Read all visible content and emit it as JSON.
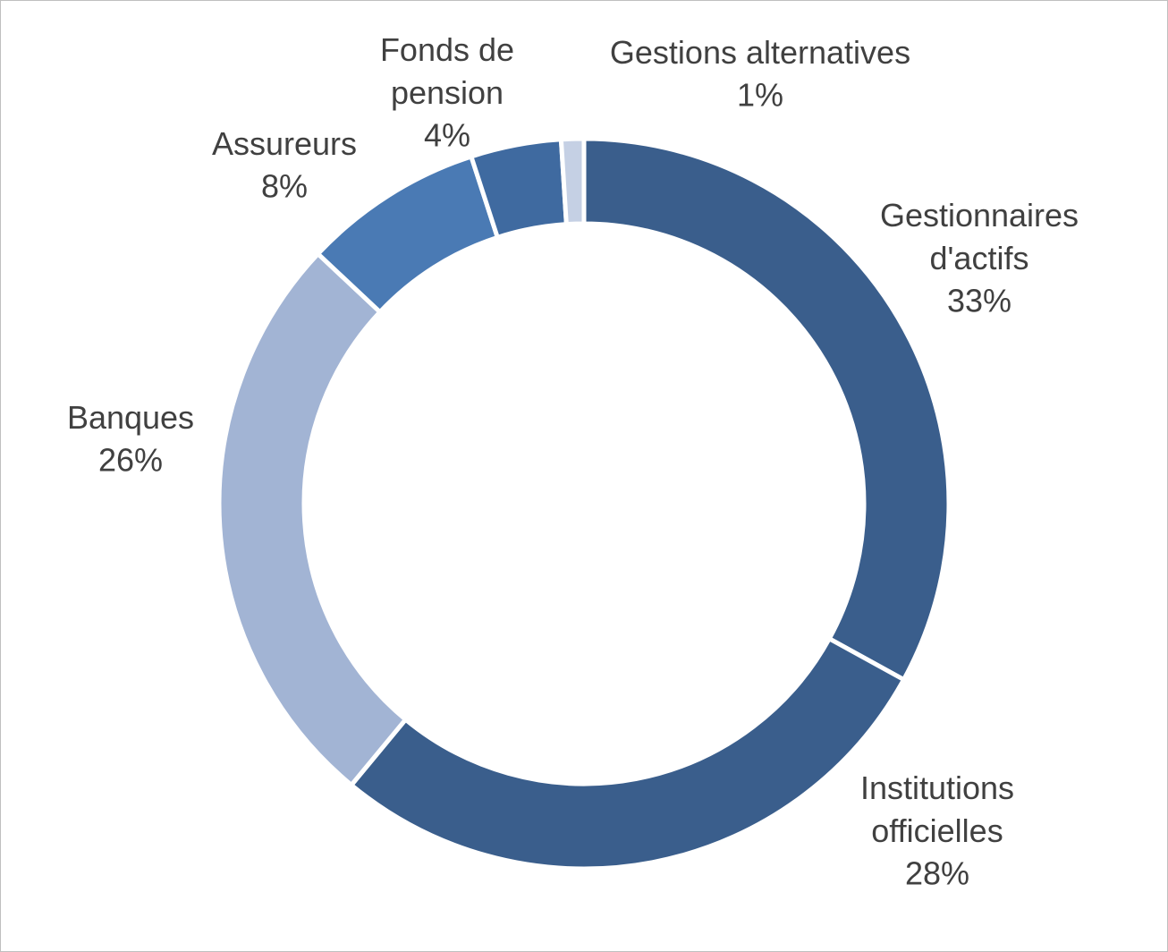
{
  "chart_data": {
    "type": "donut",
    "categories": [
      "Gestionnaires d'actifs",
      "Institutions officielles",
      "Banques",
      "Assureurs",
      "Fonds de pension",
      "Gestions alternatives"
    ],
    "values": [
      33,
      28,
      26,
      8,
      4,
      1
    ],
    "value_labels": [
      "33%",
      "28%",
      "26%",
      "8%",
      "4%",
      "1%"
    ],
    "colors": [
      "#3a5e8c",
      "#3a5e8c",
      "#a2b4d4",
      "#4a7ab4",
      "#3f6aa0",
      "#c5d0e4"
    ]
  }
}
